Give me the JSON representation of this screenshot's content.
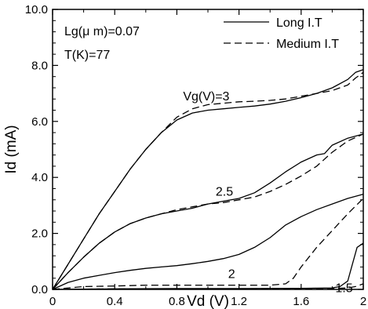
{
  "chart_data": {
    "type": "line",
    "title": "",
    "xlabel": "Vd (V)",
    "ylabel": "Id (mA)",
    "xlim": [
      0,
      2
    ],
    "ylim": [
      0,
      10
    ],
    "grid": false,
    "legend_position": "top-right",
    "x_ticks": [
      "0",
      "0.4",
      "0.8",
      "1.2",
      "1.6",
      "2"
    ],
    "y_ticks": [
      "0.0",
      "2.0",
      "4.0",
      "6.0",
      "8.0",
      "10.0"
    ],
    "annotations": {
      "lg": "Lg(μ m)=0.07",
      "temp": "T(K)=77",
      "vg3": "Vg(V)=3",
      "vg25": "2.5",
      "vg2": "2",
      "vg15": "1.5"
    },
    "legend": [
      {
        "name": "Long I.T",
        "style": "solid"
      },
      {
        "name": "Medium I.T",
        "style": "dashed"
      }
    ],
    "series": [
      {
        "group": "Long I.T",
        "vg": "3",
        "style": "solid",
        "x": [
          0,
          0.1,
          0.2,
          0.3,
          0.4,
          0.5,
          0.6,
          0.7,
          0.8,
          0.9,
          1.0,
          1.1,
          1.2,
          1.3,
          1.4,
          1.5,
          1.6,
          1.7,
          1.8,
          1.9,
          1.95,
          2.0
        ],
        "y": [
          0,
          0.9,
          1.8,
          2.7,
          3.5,
          4.3,
          5.0,
          5.6,
          6.05,
          6.3,
          6.4,
          6.45,
          6.5,
          6.55,
          6.62,
          6.72,
          6.85,
          7.0,
          7.2,
          7.5,
          7.75,
          7.85
        ]
      },
      {
        "group": "Medium I.T",
        "vg": "3",
        "style": "dashed",
        "x": [
          0,
          0.1,
          0.2,
          0.3,
          0.4,
          0.5,
          0.6,
          0.7,
          0.8,
          0.9,
          1.0,
          1.1,
          1.2,
          1.3,
          1.4,
          1.5,
          1.6,
          1.7,
          1.8,
          1.9,
          1.95,
          2.0
        ],
        "y": [
          0,
          0.9,
          1.8,
          2.7,
          3.5,
          4.3,
          5.0,
          5.6,
          6.15,
          6.45,
          6.6,
          6.65,
          6.7,
          6.72,
          6.75,
          6.8,
          6.9,
          7.0,
          7.1,
          7.3,
          7.55,
          7.75
        ]
      },
      {
        "group": "Long I.T",
        "vg": "2.5",
        "style": "solid",
        "x": [
          0,
          0.1,
          0.2,
          0.3,
          0.4,
          0.5,
          0.6,
          0.7,
          0.8,
          0.9,
          1.0,
          1.1,
          1.2,
          1.3,
          1.4,
          1.5,
          1.6,
          1.7,
          1.75,
          1.8,
          1.9,
          2.0
        ],
        "y": [
          0,
          0.6,
          1.15,
          1.65,
          2.05,
          2.35,
          2.55,
          2.7,
          2.8,
          2.9,
          3.05,
          3.15,
          3.25,
          3.45,
          3.8,
          4.2,
          4.55,
          4.8,
          4.85,
          5.15,
          5.4,
          5.55
        ]
      },
      {
        "group": "Medium I.T",
        "vg": "2.5",
        "style": "dashed",
        "x": [
          0,
          0.1,
          0.2,
          0.3,
          0.4,
          0.5,
          0.6,
          0.7,
          0.8,
          0.9,
          1.0,
          1.1,
          1.2,
          1.3,
          1.4,
          1.5,
          1.6,
          1.7,
          1.8,
          1.9,
          2.0
        ],
        "y": [
          0,
          0.6,
          1.15,
          1.65,
          2.05,
          2.35,
          2.55,
          2.7,
          2.85,
          2.95,
          3.05,
          3.1,
          3.2,
          3.3,
          3.5,
          3.75,
          4.05,
          4.4,
          4.9,
          5.3,
          5.55
        ]
      },
      {
        "group": "Long I.T",
        "vg": "2",
        "style": "solid",
        "x": [
          0,
          0.1,
          0.2,
          0.3,
          0.4,
          0.5,
          0.6,
          0.7,
          0.8,
          0.9,
          1.0,
          1.1,
          1.2,
          1.3,
          1.4,
          1.5,
          1.6,
          1.7,
          1.8,
          1.9,
          2.0
        ],
        "y": [
          0,
          0.25,
          0.4,
          0.5,
          0.6,
          0.68,
          0.75,
          0.8,
          0.85,
          0.92,
          1.0,
          1.1,
          1.25,
          1.5,
          1.85,
          2.3,
          2.6,
          2.85,
          3.05,
          3.25,
          3.4
        ]
      },
      {
        "group": "Medium I.T",
        "vg": "2",
        "style": "dashed",
        "x": [
          0,
          0.2,
          0.4,
          0.6,
          0.8,
          1.0,
          1.2,
          1.4,
          1.5,
          1.55,
          1.6,
          1.7,
          1.8,
          1.9,
          2.0
        ],
        "y": [
          0,
          0.1,
          0.12,
          0.15,
          0.15,
          0.15,
          0.15,
          0.15,
          0.2,
          0.4,
          0.8,
          1.5,
          2.1,
          2.7,
          3.25
        ]
      },
      {
        "group": "Long I.T",
        "vg": "1.5",
        "style": "solid",
        "x": [
          0,
          0.4,
          0.8,
          1.2,
          1.6,
          1.8,
          1.85,
          1.9,
          1.93,
          1.96,
          2.0
        ],
        "y": [
          0,
          0.02,
          0.03,
          0.03,
          0.04,
          0.05,
          0.1,
          0.3,
          0.9,
          1.5,
          1.65
        ]
      },
      {
        "group": "Medium I.T",
        "vg": "1.5",
        "style": "dashed",
        "x": [
          0,
          0.4,
          0.8,
          1.2,
          1.6,
          1.8,
          1.9,
          1.95,
          2.0
        ],
        "y": [
          0,
          0.02,
          0.02,
          0.02,
          0.03,
          0.03,
          0.05,
          0.1,
          0.2
        ]
      }
    ]
  }
}
